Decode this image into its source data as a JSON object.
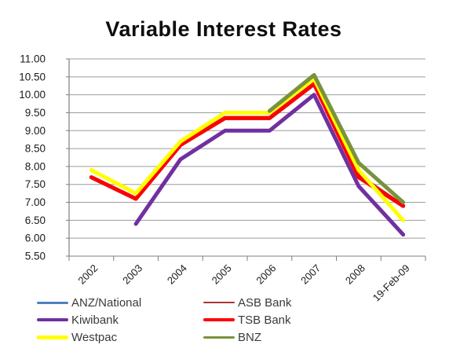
{
  "title": "Variable Interest Rates",
  "chart_data": {
    "type": "line",
    "title": "Variable Interest Rates",
    "categories": [
      "2002",
      "2003",
      "2004",
      "2005",
      "2006",
      "2007",
      "2008",
      "19-Feb-09"
    ],
    "series": [
      {
        "name": "ANZ/National",
        "color": "#4f81bd",
        "legend_thickness": 3,
        "values": [
          7.7,
          7.1,
          8.6,
          9.35,
          9.35,
          10.3,
          7.7,
          6.9
        ]
      },
      {
        "name": "ASB Bank",
        "color": "#aa3333",
        "legend_thickness": 2.5,
        "values": [
          7.7,
          7.1,
          8.6,
          9.35,
          9.35,
          10.3,
          7.75,
          6.9
        ]
      },
      {
        "name": "Kiwibank",
        "color": "#7030a0",
        "legend_thickness": 4,
        "values": [
          null,
          6.4,
          8.2,
          9.0,
          9.0,
          10.0,
          7.45,
          6.1
        ]
      },
      {
        "name": "TSB Bank",
        "color": "#ff0000",
        "legend_thickness": 4.5,
        "values": [
          7.7,
          7.1,
          8.6,
          9.35,
          9.35,
          10.3,
          7.7,
          6.9
        ]
      },
      {
        "name": "Westpac",
        "color": "#ffff00",
        "legend_thickness": 5,
        "values": [
          7.9,
          7.25,
          8.7,
          9.5,
          9.5,
          10.45,
          7.9,
          6.5
        ]
      },
      {
        "name": "BNZ",
        "color": "#77933c",
        "legend_thickness": 3,
        "values": [
          null,
          null,
          null,
          null,
          9.55,
          10.55,
          8.1,
          7.0
        ]
      }
    ],
    "ylim": [
      5.5,
      11.0
    ],
    "y_tick_step": 0.5,
    "y_tick_labels": [
      "11.00",
      "10.50",
      "10.00",
      "9.50",
      "9.00",
      "8.50",
      "8.00",
      "7.50",
      "7.00",
      "6.50",
      "6.00",
      "5.50"
    ],
    "grid": true,
    "legend_position": "bottom",
    "legend_columns": 2,
    "x_label_rotation_deg": -45
  },
  "colors": {
    "background": "#ffffff",
    "gridline": "#9c9c9c",
    "axis": "#7f7f7f",
    "tick_label": "#1a1a1a",
    "legend_text": "#3a3a3a"
  }
}
